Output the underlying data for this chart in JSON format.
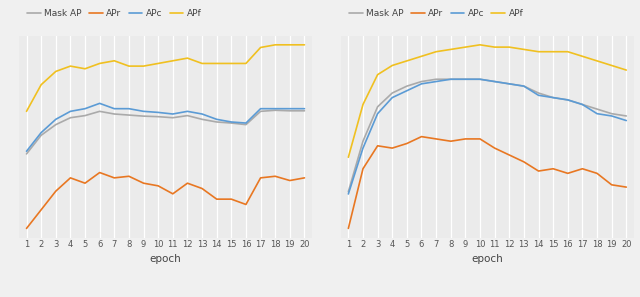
{
  "epochs": [
    1,
    2,
    3,
    4,
    5,
    6,
    7,
    8,
    9,
    10,
    11,
    12,
    13,
    14,
    15,
    16,
    17,
    18,
    19,
    20
  ],
  "chart_a": {
    "mask_ap": [
      19.0,
      22.5,
      24.5,
      25.8,
      26.2,
      27.0,
      26.5,
      26.3,
      26.1,
      26.0,
      25.8,
      26.2,
      25.5,
      25.0,
      24.8,
      24.5,
      27.0,
      27.2,
      27.1,
      27.1
    ],
    "apr": [
      5.0,
      8.5,
      12.0,
      14.5,
      13.5,
      15.5,
      14.5,
      14.8,
      13.5,
      13.0,
      11.5,
      13.5,
      12.5,
      10.5,
      10.5,
      9.5,
      14.5,
      14.8,
      14.0,
      14.5
    ],
    "apc": [
      19.5,
      23.0,
      25.5,
      27.0,
      27.5,
      28.5,
      27.5,
      27.5,
      27.0,
      26.8,
      26.5,
      27.0,
      26.5,
      25.5,
      25.0,
      24.8,
      27.5,
      27.5,
      27.5,
      27.5
    ],
    "apf": [
      27.0,
      32.0,
      34.5,
      35.5,
      35.0,
      36.0,
      36.5,
      35.5,
      35.5,
      36.0,
      36.5,
      37.0,
      36.0,
      36.0,
      36.0,
      36.0,
      39.0,
      39.5,
      39.5,
      39.5
    ]
  },
  "chart_b": {
    "mask_ap": [
      10.0,
      21.0,
      28.5,
      31.5,
      33.0,
      34.0,
      34.5,
      34.5,
      34.5,
      34.5,
      34.0,
      33.5,
      33.0,
      31.5,
      30.5,
      30.0,
      29.0,
      28.0,
      27.0,
      26.5
    ],
    "apr": [
      2.0,
      15.0,
      20.0,
      19.5,
      20.5,
      22.0,
      21.5,
      21.0,
      21.5,
      21.5,
      19.5,
      18.0,
      16.5,
      14.5,
      15.0,
      14.0,
      15.0,
      14.0,
      11.5,
      11.0
    ],
    "apc": [
      9.5,
      19.5,
      27.0,
      30.5,
      32.0,
      33.5,
      34.0,
      34.5,
      34.5,
      34.5,
      34.0,
      33.5,
      33.0,
      31.0,
      30.5,
      30.0,
      29.0,
      27.0,
      26.5,
      25.5
    ],
    "apf": [
      17.5,
      29.0,
      35.5,
      37.5,
      38.5,
      39.5,
      40.5,
      41.0,
      41.5,
      42.0,
      41.5,
      41.5,
      41.0,
      40.5,
      40.5,
      40.5,
      39.5,
      38.5,
      37.5,
      36.5
    ]
  },
  "colors": {
    "mask_ap": "#aaaaaa",
    "apr": "#E87722",
    "apc": "#5B9BD5",
    "apf": "#F0C020"
  },
  "legend_labels": [
    "Mask AP",
    "APr",
    "APc",
    "APf"
  ],
  "xlabel": "epoch",
  "bg_color": "#ebebeb",
  "grid_color": "#ffffff",
  "linewidth": 1.2,
  "fig_bg": "#f0f0f0"
}
